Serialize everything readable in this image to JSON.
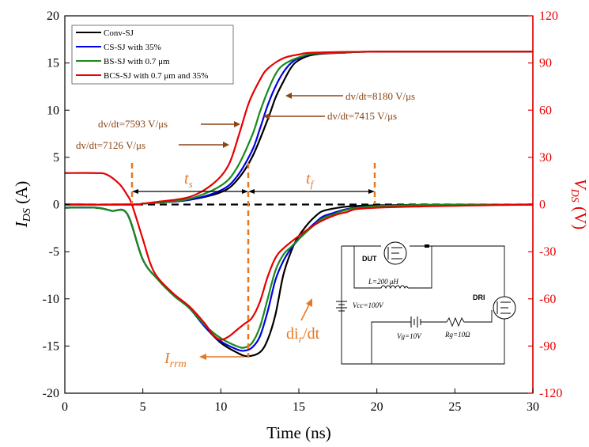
{
  "chart_data": {
    "type": "line",
    "xlabel": "Time (ns)",
    "ylabel_left": "I",
    "ylabel_left_sub": "DS",
    "ylabel_left_unit": " (A)",
    "ylabel_right": "V",
    "ylabel_right_sub": "DS",
    "ylabel_right_unit": " (V)",
    "xlim": [
      0,
      30
    ],
    "ylim_left": [
      -20,
      20
    ],
    "ylim_right": [
      -120,
      120
    ],
    "x_ticks": [
      "0",
      "5",
      "10",
      "15",
      "20",
      "25",
      "30"
    ],
    "y_left_ticks": [
      "-20",
      "-15",
      "-10",
      "-5",
      "0",
      "5",
      "10",
      "15",
      "20"
    ],
    "y_right_ticks": [
      "-120",
      "-90",
      "-60",
      "-30",
      "0",
      "30",
      "60",
      "90",
      "120"
    ],
    "legend_position": "top-left",
    "colors": {
      "right_axis": "#e60000",
      "annotation": "#8b4513",
      "marker": "#e87722"
    },
    "series": [
      {
        "name": "Conv-SJ",
        "color": "#000000",
        "current": [
          [
            0,
            0
          ],
          [
            4.3,
            0
          ],
          [
            5,
            0.1
          ],
          [
            6,
            0.2
          ],
          [
            8,
            0.5
          ],
          [
            10,
            1.3
          ],
          [
            11,
            2.5
          ],
          [
            12,
            5
          ],
          [
            13,
            9
          ],
          [
            13.5,
            11.3
          ],
          [
            14,
            13
          ],
          [
            14.5,
            14.5
          ],
          [
            15,
            15.3
          ],
          [
            16,
            15.9
          ],
          [
            18,
            16.1
          ],
          [
            20,
            16.2
          ],
          [
            30,
            16.2
          ]
        ],
        "voltage": [
          [
            0,
            -2
          ],
          [
            2,
            -2
          ],
          [
            3,
            -4
          ],
          [
            4,
            -6
          ],
          [
            5,
            -35
          ],
          [
            6,
            -48
          ],
          [
            7,
            -58
          ],
          [
            8,
            -66
          ],
          [
            9,
            -78
          ],
          [
            10,
            -88
          ],
          [
            11,
            -94
          ],
          [
            11.7,
            -96.5
          ],
          [
            12.5,
            -94
          ],
          [
            13,
            -86
          ],
          [
            13.5,
            -70
          ],
          [
            14,
            -45
          ],
          [
            14.5,
            -30
          ],
          [
            15,
            -20
          ],
          [
            16,
            -8
          ],
          [
            17,
            -3
          ],
          [
            20,
            -0.5
          ],
          [
            30,
            0
          ]
        ]
      },
      {
        "name": "CS-SJ with 35%",
        "color": "#0000e6",
        "current": [
          [
            0,
            0
          ],
          [
            4.3,
            0
          ],
          [
            5,
            0.1
          ],
          [
            6,
            0.2
          ],
          [
            8,
            0.5
          ],
          [
            10,
            1.5
          ],
          [
            11,
            2.9
          ],
          [
            12,
            5.7
          ],
          [
            12.5,
            8
          ],
          [
            13,
            10.5
          ],
          [
            13.5,
            12.5
          ],
          [
            14,
            14
          ],
          [
            14.5,
            15
          ],
          [
            15,
            15.5
          ],
          [
            16,
            16
          ],
          [
            18,
            16.1
          ],
          [
            20,
            16.2
          ],
          [
            30,
            16.2
          ]
        ],
        "voltage": [
          [
            0,
            -2
          ],
          [
            2,
            -2
          ],
          [
            3,
            -4
          ],
          [
            4,
            -6
          ],
          [
            5,
            -35
          ],
          [
            6,
            -48
          ],
          [
            7,
            -58
          ],
          [
            8,
            -66
          ],
          [
            9,
            -78
          ],
          [
            10,
            -87
          ],
          [
            11,
            -92
          ],
          [
            11.5,
            -93
          ],
          [
            12,
            -91
          ],
          [
            12.5,
            -84
          ],
          [
            13,
            -68
          ],
          [
            13.5,
            -48
          ],
          [
            14,
            -36
          ],
          [
            14.5,
            -28
          ],
          [
            15,
            -22
          ],
          [
            16,
            -12
          ],
          [
            17,
            -6
          ],
          [
            20,
            -1
          ],
          [
            30,
            0
          ]
        ]
      },
      {
        "name": "BS-SJ with 0.7 μm",
        "color": "#1a8a1a",
        "current": [
          [
            0,
            0
          ],
          [
            4.3,
            0
          ],
          [
            5,
            0.1
          ],
          [
            6,
            0.2
          ],
          [
            8,
            0.6
          ],
          [
            10,
            2
          ],
          [
            11,
            3.8
          ],
          [
            12,
            7.3
          ],
          [
            12.5,
            9.8
          ],
          [
            13,
            12
          ],
          [
            13.5,
            13.8
          ],
          [
            14,
            14.8
          ],
          [
            15,
            15.6
          ],
          [
            16,
            16
          ],
          [
            18,
            16.1
          ],
          [
            20,
            16.2
          ],
          [
            30,
            16.2
          ]
        ],
        "voltage": [
          [
            0,
            -2
          ],
          [
            2,
            -2
          ],
          [
            3,
            -4
          ],
          [
            4,
            -6
          ],
          [
            5,
            -35
          ],
          [
            6,
            -48
          ],
          [
            7,
            -58
          ],
          [
            8,
            -66
          ],
          [
            9,
            -77
          ],
          [
            10,
            -85
          ],
          [
            11,
            -90
          ],
          [
            11.5,
            -91
          ],
          [
            12,
            -88
          ],
          [
            12.5,
            -78
          ],
          [
            13,
            -60
          ],
          [
            13.5,
            -42
          ],
          [
            14,
            -32
          ],
          [
            14.5,
            -27
          ],
          [
            15,
            -22
          ],
          [
            16,
            -13
          ],
          [
            17,
            -7
          ],
          [
            20,
            -1
          ],
          [
            30,
            0
          ]
        ]
      },
      {
        "name": "BCS-SJ with 0.7 μm and 35%",
        "color": "#e60000",
        "current": [
          [
            0,
            0
          ],
          [
            4.3,
            0
          ],
          [
            5,
            0.1
          ],
          [
            6,
            0.3
          ],
          [
            8,
            0.8
          ],
          [
            9.5,
            2.2
          ],
          [
            10.5,
            4.2
          ],
          [
            11.2,
            7.6
          ],
          [
            11.8,
            10.8
          ],
          [
            12.5,
            13.2
          ],
          [
            13,
            14.4
          ],
          [
            14,
            15.5
          ],
          [
            15,
            15.9
          ],
          [
            16,
            16.1
          ],
          [
            20,
            16.2
          ],
          [
            30,
            16.2
          ]
        ],
        "voltage": [
          [
            0,
            20
          ],
          [
            2,
            20
          ],
          [
            2.7,
            19
          ],
          [
            3.5,
            13
          ],
          [
            4,
            6
          ],
          [
            4.3,
            0
          ],
          [
            5,
            -22
          ],
          [
            5.5,
            -38
          ],
          [
            6,
            -47
          ],
          [
            7,
            -57
          ],
          [
            8,
            -65
          ],
          [
            9,
            -76
          ],
          [
            9.5,
            -83
          ],
          [
            10,
            -86
          ],
          [
            10.5,
            -84
          ],
          [
            11,
            -80
          ],
          [
            11.5,
            -76
          ],
          [
            12,
            -72
          ],
          [
            12.5,
            -62
          ],
          [
            13,
            -46
          ],
          [
            13.5,
            -34
          ],
          [
            14,
            -28
          ],
          [
            15,
            -20
          ],
          [
            16,
            -13
          ],
          [
            17,
            -8
          ],
          [
            18,
            -5
          ],
          [
            20,
            -2
          ],
          [
            30,
            0
          ]
        ]
      }
    ],
    "annotations": {
      "dv1": "dv/dt=8180 V/μs",
      "dv2": "dv/dt=7415 V/μs",
      "dv3": "dv/dt=7593 V/μs",
      "dv4": "dv/dt=7126 V/μs",
      "ts_main": "t",
      "ts_sub": "s",
      "tf_main": "t",
      "tf_sub": "f",
      "irrm_main": "I",
      "irrm_sub": "rrm",
      "dirdt_pre": "di",
      "dirdt_sub": "r",
      "dirdt_post": "/dt",
      "marker_x_ns": [
        4.3,
        11.7,
        19.9
      ]
    },
    "circuit": {
      "dut": "DUT",
      "dri": "DRI",
      "inductor": "L=200 μH",
      "vcc": "Vcc=100V",
      "vg": "Vg=10V",
      "rg": "Rg=10Ω"
    }
  }
}
